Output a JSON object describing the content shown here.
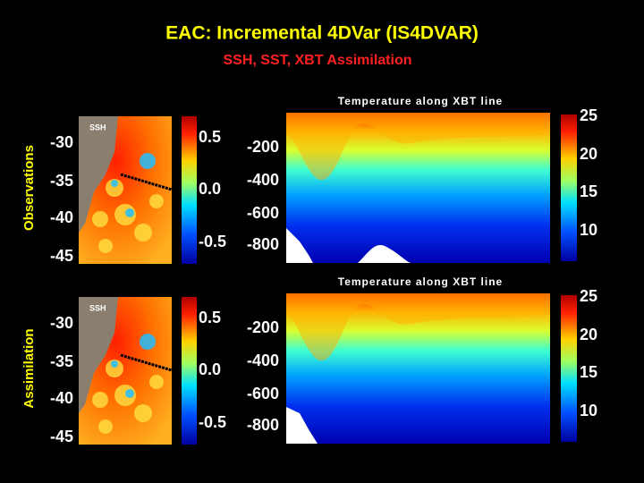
{
  "title": "EAC: Incremental 4DVar (IS4DVAR)",
  "subtitle": "SSH, SST, XBT Assimilation",
  "rows": [
    {
      "label": "Observations",
      "map_label": "SSH",
      "section_title": "Temperature along XBT line",
      "lat_ticks": [
        "-30",
        "-35",
        "-40",
        "-45"
      ],
      "ssh_ticks": [
        "0.5",
        "0.0",
        "-0.5"
      ],
      "depth_ticks": [
        "-200",
        "-400",
        "-600",
        "-800"
      ],
      "temp_ticks": [
        "25",
        "20",
        "15",
        "10"
      ]
    },
    {
      "label": "Assimilation",
      "map_label": "SSH",
      "section_title": "Temperature along XBT line",
      "lat_ticks": [
        "-30",
        "-35",
        "-40",
        "-45"
      ],
      "ssh_ticks": [
        "0.5",
        "0.0",
        "-0.5"
      ],
      "depth_ticks": [
        "-200",
        "-400",
        "-600",
        "-800"
      ],
      "temp_ticks": [
        "25",
        "20",
        "15",
        "10"
      ]
    }
  ]
}
